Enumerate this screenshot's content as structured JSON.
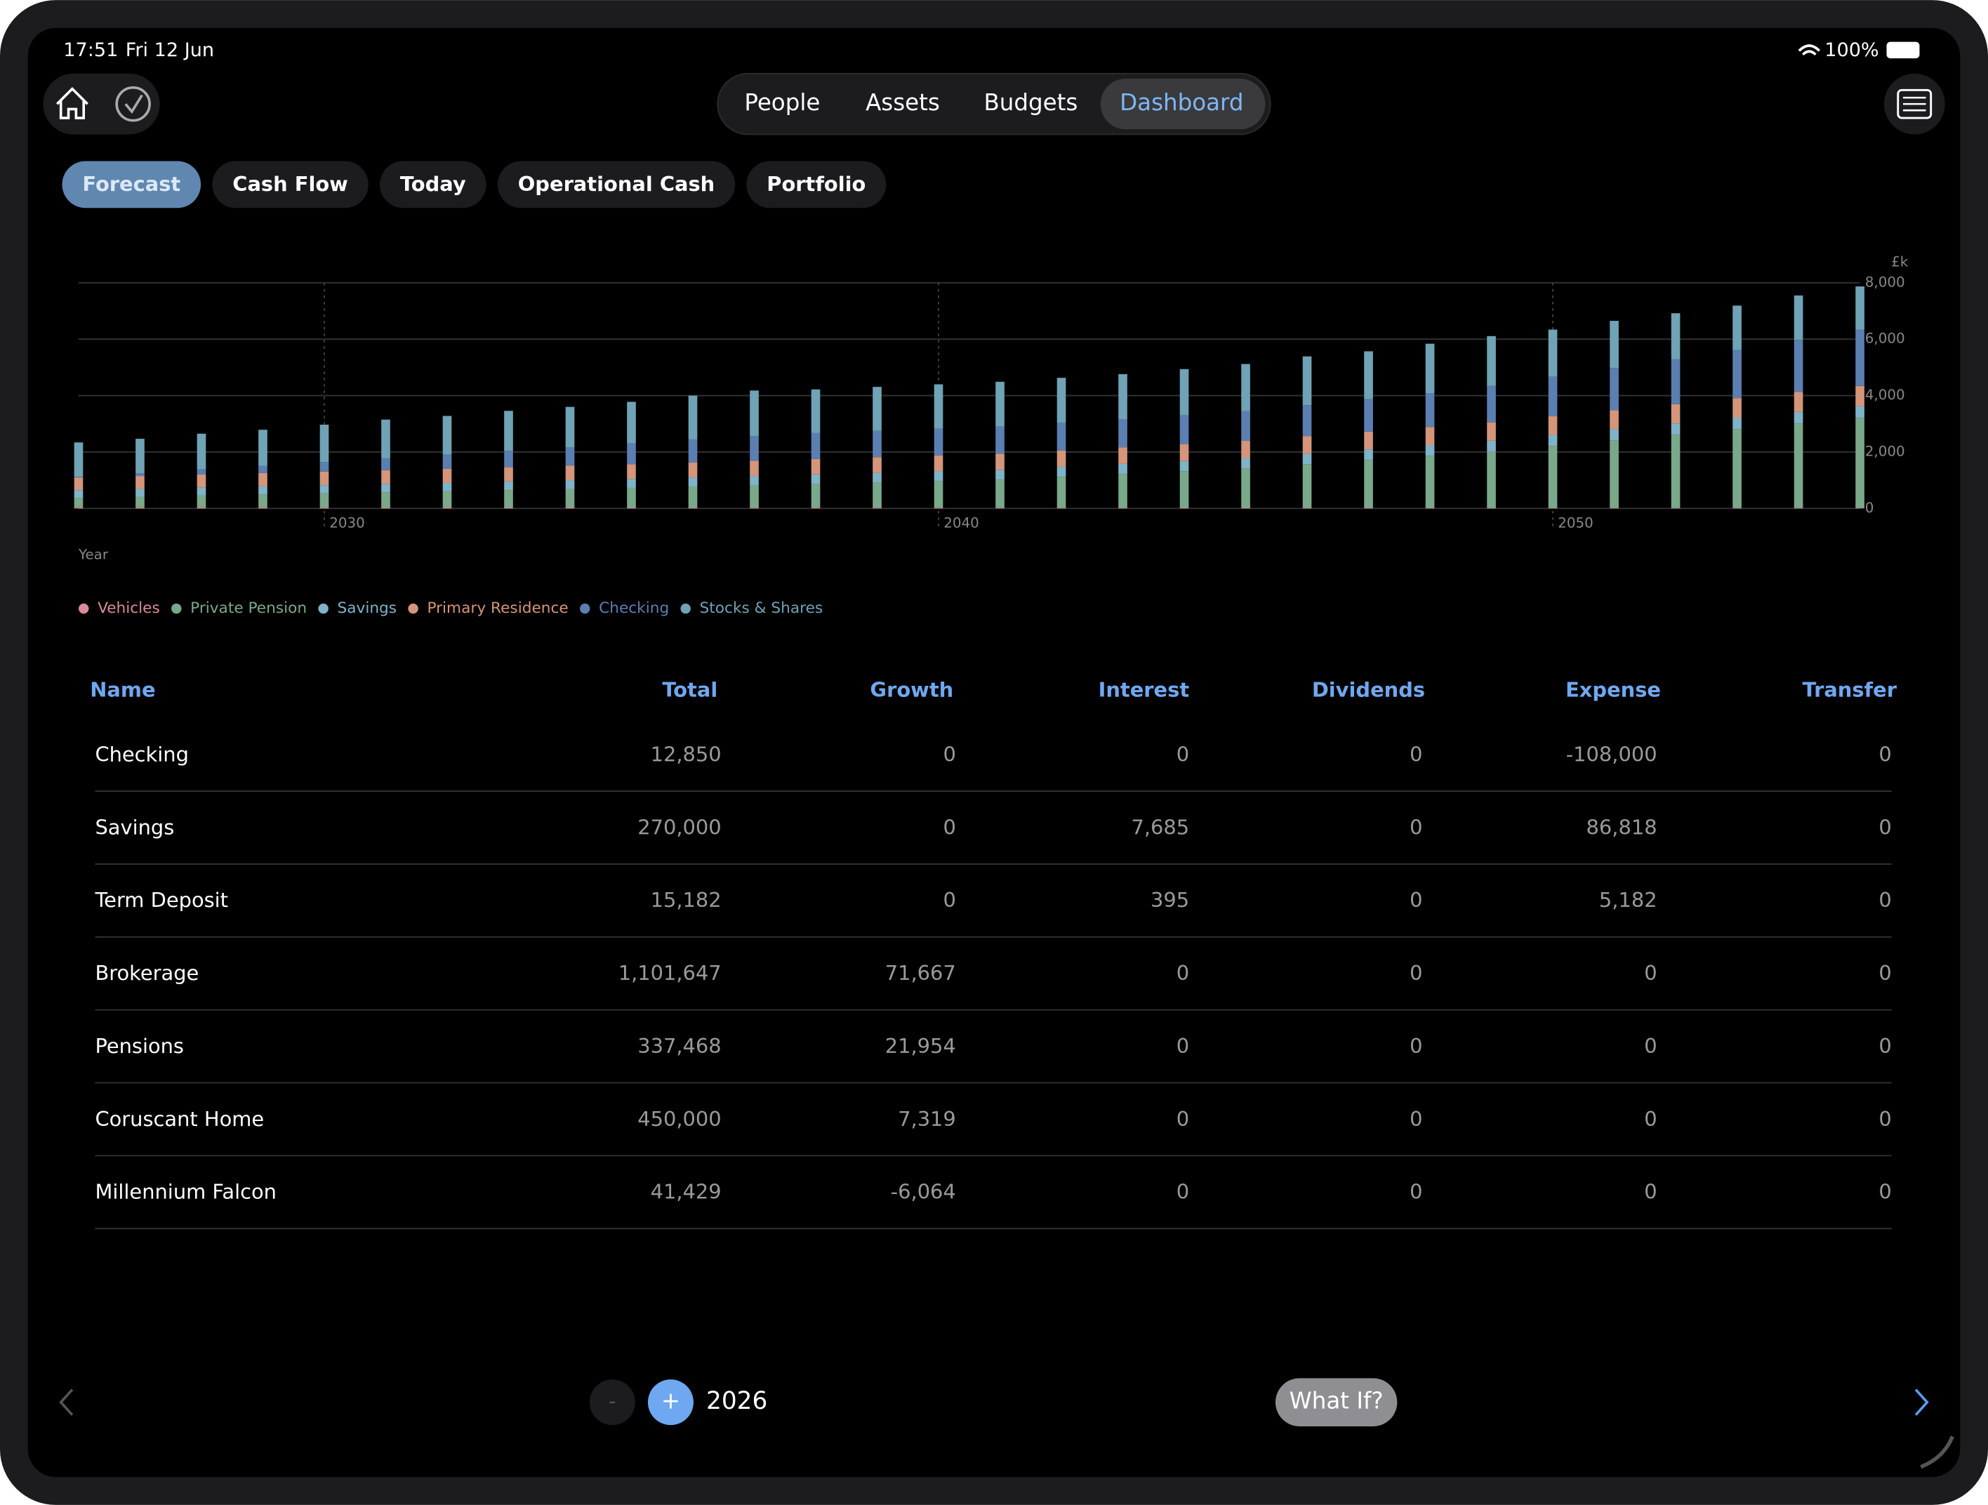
{
  "status_bar": {
    "time": "17:51",
    "date": "Fri 12 Jun",
    "battery": "100%"
  },
  "nav": {
    "tabs": [
      "People",
      "Assets",
      "Budgets",
      "Dashboard"
    ],
    "selected": 3
  },
  "sub_tabs": {
    "tabs": [
      "Forecast",
      "Cash Flow",
      "Today",
      "Operational Cash",
      "Portfolio"
    ],
    "selected": 0
  },
  "chart_data": {
    "type": "stacked-bar",
    "y_unit": "£k",
    "x_label": "Year",
    "x": [
      2026,
      2027,
      2028,
      2029,
      2030,
      2031,
      2032,
      2033,
      2034,
      2035,
      2036,
      2037,
      2038,
      2039,
      2040,
      2041,
      2042,
      2043,
      2044,
      2045,
      2046,
      2047,
      2048,
      2049,
      2050,
      2051,
      2052,
      2053,
      2054,
      2055
    ],
    "xlim": [
      2026,
      2055
    ],
    "xticks": [
      2030,
      2040,
      2050
    ],
    "ylim": [
      0,
      8000
    ],
    "yticks": [
      0,
      {
        "value": 2000,
        "label": "2,000"
      },
      {
        "value": 4000,
        "label": "4,000"
      },
      {
        "value": 6000,
        "label": "6,000"
      },
      {
        "value": 8000,
        "label": "8,000"
      }
    ],
    "grid": true,
    "series": [
      {
        "name": "Vehicles",
        "color": "#d98a9b",
        "values": [
          40,
          39,
          38,
          37,
          36,
          35,
          34,
          33,
          32,
          31,
          30,
          29,
          28,
          27,
          26,
          25,
          24,
          23,
          22,
          21,
          20,
          19,
          18,
          17,
          16,
          15,
          14,
          13,
          12,
          11
        ]
      },
      {
        "name": "Private Pension",
        "color": "#7aa88a",
        "values": [
          340,
          380,
          420,
          460,
          500,
          540,
          580,
          620,
          660,
          700,
          750,
          800,
          850,
          900,
          950,
          1000,
          1100,
          1200,
          1300,
          1400,
          1550,
          1700,
          1850,
          2000,
          2200,
          2400,
          2600,
          2800,
          3000,
          3200
        ]
      },
      {
        "name": "Savings",
        "color": "#7fb3c8",
        "values": [
          270,
          275,
          280,
          285,
          290,
          295,
          300,
          305,
          310,
          315,
          320,
          325,
          330,
          335,
          340,
          345,
          350,
          355,
          360,
          365,
          370,
          375,
          380,
          385,
          390,
          395,
          400,
          405,
          410,
          415
        ]
      },
      {
        "name": "Primary Residence",
        "color": "#d4957a",
        "values": [
          450,
          457,
          465,
          472,
          480,
          487,
          495,
          503,
          511,
          519,
          528,
          536,
          545,
          554,
          563,
          572,
          581,
          590,
          600,
          610,
          620,
          630,
          640,
          650,
          661,
          671,
          682,
          693,
          704,
          716
        ]
      },
      {
        "name": "Checking",
        "color": "#5b7fb0",
        "values": [
          20,
          100,
          180,
          260,
          340,
          420,
          500,
          580,
          660,
          740,
          820,
          880,
          920,
          940,
          950,
          960,
          980,
          1000,
          1020,
          1050,
          1100,
          1150,
          1200,
          1300,
          1400,
          1500,
          1600,
          1700,
          1850,
          2000
        ]
      },
      {
        "name": "Stocks & Shares",
        "color": "#6fa3b5",
        "values": [
          1220,
          1219,
          1267,
          1276,
          1324,
          1373,
          1371,
          1419,
          1427,
          1475,
          1552,
          1610,
          1547,
          1554,
          1571,
          1588,
          1595,
          1592,
          1638,
          1674,
          1730,
          1696,
          1752,
          1758,
          1673,
          1669,
          1624,
          1579,
          1574,
          1528
        ]
      }
    ]
  },
  "table": {
    "columns": [
      "Name",
      "Total",
      "Growth",
      "Interest",
      "Dividends",
      "Expense",
      "Transfer"
    ],
    "rows": [
      [
        "Checking",
        "12,850",
        "0",
        "0",
        "0",
        "-108,000",
        "0"
      ],
      [
        "Savings",
        "270,000",
        "0",
        "7,685",
        "0",
        "86,818",
        "0"
      ],
      [
        "Term Deposit",
        "15,182",
        "0",
        "395",
        "0",
        "5,182",
        "0"
      ],
      [
        "Brokerage",
        "1,101,647",
        "71,667",
        "0",
        "0",
        "0",
        "0"
      ],
      [
        "Pensions",
        "337,468",
        "21,954",
        "0",
        "0",
        "0",
        "0"
      ],
      [
        "Coruscant Home",
        "450,000",
        "7,319",
        "0",
        "0",
        "0",
        "0"
      ],
      [
        "Millennium Falcon",
        "41,429",
        "-6,064",
        "0",
        "0",
        "0",
        "0"
      ]
    ]
  },
  "footer": {
    "minus": "-",
    "plus": "+",
    "year": "2026",
    "what_if": "What If?"
  }
}
